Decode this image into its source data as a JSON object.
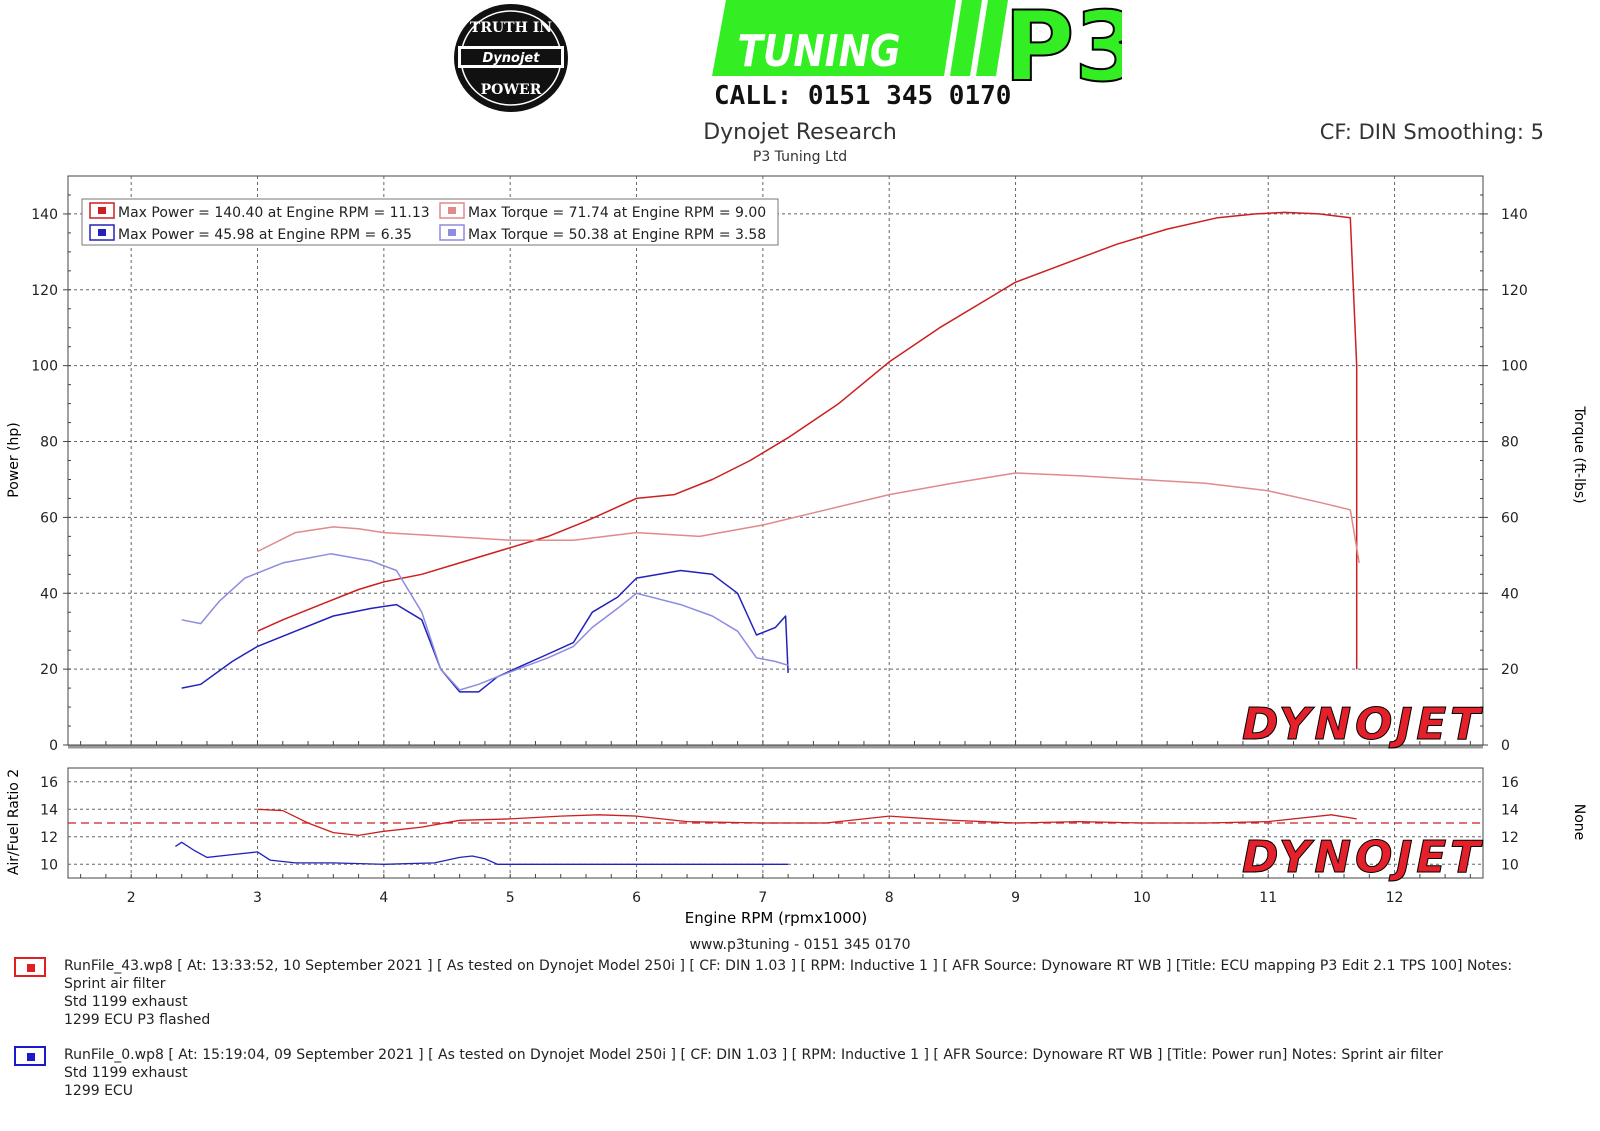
{
  "header": {
    "seal_text_top": "TRUTH IN",
    "seal_text_mid": "Dynojet",
    "seal_text_bottom": "POWER",
    "tuning_label": "TUNING",
    "brand": "P3",
    "phone_line": "CALL: 0151 345 0170",
    "title": "Dynojet Research",
    "subtitle": "P3 Tuning Ltd",
    "cf_info": "CF: DIN Smoothing: 5"
  },
  "colors": {
    "run_red": "#cc1f1f",
    "run_red_light": "#e08a8a",
    "run_blue": "#2222bb",
    "run_blue_light": "#8c8ce0",
    "p3_green": "#33ee22",
    "watermark_red": "#e4202a",
    "grid": "#666666"
  },
  "watermark": {
    "text": "DYNOJET"
  },
  "legend": [
    {
      "label": "Max Power = 140.40 at Engine RPM = 11.13",
      "color": "#cc1f1f"
    },
    {
      "label": "Max Torque = 71.74 at Engine RPM = 9.00",
      "color": "#e08a8a"
    },
    {
      "label": "Max Power = 45.98 at Engine RPM = 6.35",
      "color": "#2222bb"
    },
    {
      "label": "Max Torque = 50.38 at Engine RPM = 3.58",
      "color": "#8c8ce0"
    }
  ],
  "chart_data": [
    {
      "type": "line",
      "title": "",
      "xlabel": "Engine RPM (rpmx1000)",
      "ylabel": "Power (hp)",
      "y2label": "Torque (ft-lbs)",
      "xlim": [
        1.5,
        12.7
      ],
      "ylim": [
        0,
        150
      ],
      "y2lim": [
        0,
        150
      ],
      "xticks": [
        2,
        3,
        4,
        5,
        6,
        7,
        8,
        9,
        10,
        11,
        12
      ],
      "yticks": [
        0,
        20,
        40,
        60,
        80,
        100,
        120,
        140
      ],
      "grid": true,
      "legend_position": "top-left",
      "series": [
        {
          "name": "Max Power = 140.40 at Engine RPM = 11.13",
          "axis": "left",
          "x": [
            3.0,
            3.2,
            3.5,
            3.8,
            4.0,
            4.3,
            4.6,
            5.0,
            5.3,
            5.6,
            5.8,
            6.0,
            6.3,
            6.6,
            6.9,
            7.2,
            7.6,
            8.0,
            8.4,
            8.8,
            9.0,
            9.4,
            9.8,
            10.2,
            10.6,
            10.9,
            11.13,
            11.4,
            11.65,
            11.7,
            11.7
          ],
          "y": [
            30,
            33,
            37,
            41,
            43,
            45,
            48,
            52,
            55,
            59,
            62,
            65,
            66,
            70,
            75,
            81,
            90,
            101,
            110,
            118,
            122,
            127,
            132,
            136,
            139,
            140,
            140.4,
            140,
            139,
            100,
            20
          ]
        },
        {
          "name": "Max Torque = 71.74 at Engine RPM = 9.00",
          "axis": "right",
          "x": [
            3.0,
            3.3,
            3.6,
            3.8,
            4.0,
            4.5,
            5.0,
            5.5,
            6.0,
            6.5,
            7.0,
            7.5,
            8.0,
            8.5,
            9.0,
            9.5,
            10.0,
            10.5,
            11.0,
            11.4,
            11.65,
            11.72
          ],
          "y": [
            51,
            56,
            57.5,
            57,
            56,
            55,
            54,
            54,
            56,
            55,
            58,
            62,
            66,
            69,
            71.7,
            71,
            70,
            69,
            67,
            64,
            62,
            48
          ]
        },
        {
          "name": "Max Power = 45.98 at Engine RPM = 6.35",
          "axis": "left",
          "x": [
            2.4,
            2.55,
            2.8,
            3.0,
            3.3,
            3.6,
            3.9,
            4.1,
            4.3,
            4.45,
            4.6,
            4.75,
            4.9,
            5.1,
            5.3,
            5.5,
            5.65,
            5.85,
            6.0,
            6.35,
            6.6,
            6.8,
            6.95,
            7.1,
            7.18,
            7.2
          ],
          "y": [
            15,
            16,
            22,
            26,
            30,
            34,
            36,
            37,
            33,
            20,
            14,
            14,
            18,
            21,
            24,
            27,
            35,
            39,
            44,
            46,
            45,
            40,
            29,
            31,
            34,
            19
          ]
        },
        {
          "name": "Max Torque = 50.38 at Engine RPM = 3.58",
          "axis": "right",
          "x": [
            2.4,
            2.55,
            2.7,
            2.9,
            3.2,
            3.58,
            3.9,
            4.1,
            4.3,
            4.45,
            4.6,
            4.75,
            4.9,
            5.1,
            5.3,
            5.5,
            5.65,
            5.85,
            6.0,
            6.35,
            6.6,
            6.8,
            6.95,
            7.1,
            7.2
          ],
          "y": [
            33,
            32,
            38,
            44,
            48,
            50.4,
            48.5,
            46,
            35,
            20,
            14.5,
            16,
            18,
            20.5,
            23,
            26,
            31,
            36,
            40,
            37,
            34,
            30,
            23,
            22,
            21
          ]
        }
      ]
    },
    {
      "type": "line",
      "title": "",
      "xlabel": "",
      "ylabel": "Air/Fuel Ratio 2",
      "y2label": "None",
      "xlim": [
        1.5,
        12.7
      ],
      "ylim": [
        9,
        17
      ],
      "yticks": [
        10,
        12,
        14,
        16
      ],
      "reference_line": 13.0,
      "grid": true,
      "series": [
        {
          "name": "",
          "color": "#cc1f1f",
          "x": [
            3.0,
            3.2,
            3.4,
            3.6,
            3.8,
            4.0,
            4.3,
            4.6,
            5.0,
            5.4,
            5.7,
            6.0,
            6.4,
            7.0,
            7.5,
            8.0,
            8.5,
            9.0,
            9.5,
            10.0,
            10.5,
            11.0,
            11.5,
            11.7
          ],
          "y": [
            14,
            13.9,
            13.0,
            12.3,
            12.1,
            12.4,
            12.7,
            13.2,
            13.3,
            13.5,
            13.6,
            13.5,
            13.1,
            13.0,
            13.0,
            13.5,
            13.2,
            13.0,
            13.1,
            13.0,
            13.0,
            13.1,
            13.6,
            13.3
          ]
        },
        {
          "name": "",
          "color": "#2222bb",
          "x": [
            2.35,
            2.4,
            2.5,
            2.6,
            2.8,
            3.0,
            3.1,
            3.3,
            3.6,
            4.0,
            4.4,
            4.6,
            4.7,
            4.8,
            4.9,
            5.0,
            5.5,
            6.0,
            6.5,
            7.0,
            7.2
          ],
          "y": [
            11.3,
            11.6,
            11.0,
            10.5,
            10.7,
            10.9,
            10.3,
            10.1,
            10.1,
            10.0,
            10.1,
            10.5,
            10.6,
            10.4,
            10.0,
            10.0,
            10.0,
            10.0,
            10.0,
            10.0,
            10.0
          ]
        }
      ]
    }
  ],
  "footer": {
    "website": "www.p3tuning - 0151 345 0170",
    "runs": [
      {
        "color": "#e02020",
        "lines": [
          "RunFile_43.wp8 [ At: 13:33:52, 10 September 2021 ] [ As tested on Dynojet Model 250i ] [ CF: DIN 1.03 ] [ RPM: Inductive 1 ] [ AFR Source: Dynoware RT WB ] [Title: ECU mapping P3 Edit 2.1 TPS 100]  Notes: Sprint air filter",
          "Std 1199 exhaust",
          "1299 ECU P3 flashed"
        ]
      },
      {
        "color": "#1a1acc",
        "lines": [
          "RunFile_0.wp8 [ At: 15:19:04, 09 September 2021 ] [ As tested on Dynojet Model 250i ] [ CF: DIN 1.03 ] [ RPM: Inductive 1 ] [ AFR Source: Dynoware RT WB ] [Title: Power run]  Notes: Sprint air filter",
          "Std 1199 exhaust",
          "1299 ECU"
        ]
      }
    ]
  }
}
